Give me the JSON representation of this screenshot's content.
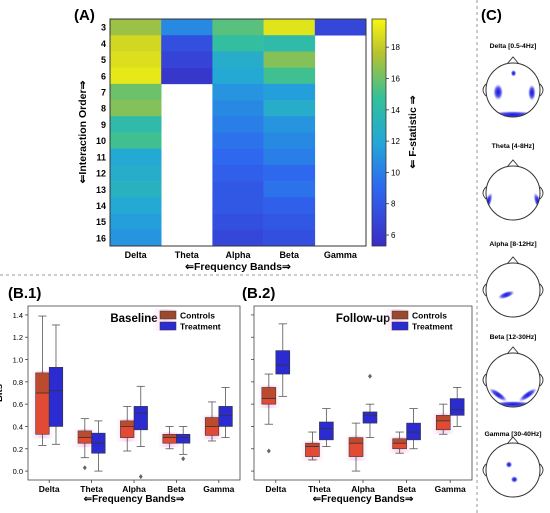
{
  "panel_labels": {
    "A": "(A)",
    "B1": "(B.1)",
    "B2": "(B.2)",
    "C": "(C)"
  },
  "heatmap": {
    "xlabel": "⇐Frequency Bands⇒",
    "ylabel": "⇐Interaction Order⇒",
    "colorbar_label": "⇐ F-statistic ⇒",
    "colorbar_ticks": [
      6,
      8,
      10,
      12,
      14,
      16,
      18
    ],
    "vmin": 5.3,
    "vmax": 19.8
  },
  "boxplots": {
    "xlabel": "⇐Frequency Bands⇒",
    "ylabel": "Bits",
    "y_ticks": [
      "0.0",
      "0.2",
      "0.4",
      "0.6",
      "0.8",
      "1.0",
      "1.2",
      "1.4"
    ],
    "legend": [
      "Controls",
      "Treatment"
    ],
    "colors": {
      "controls": "#9a4a2c",
      "controls_face": "#e34a33",
      "treatment": "#2b2bd1"
    }
  },
  "topomaps": [
    {
      "label": "Delta [0.5-4Hz]"
    },
    {
      "label": "Theta [4-8Hz]"
    },
    {
      "label": "Alpha [8-12Hz]"
    },
    {
      "label": "Beta [12-30Hz]"
    },
    {
      "label": "Gamma [30-40Hz]"
    }
  ],
  "chart_data": [
    {
      "type": "heatmap",
      "xlabel": "⇐Frequency Bands⇒",
      "ylabel": "⇐Interaction Order⇒",
      "x_categories": [
        "Delta",
        "Theta",
        "Alpha",
        "Beta",
        "Gamma"
      ],
      "y_categories": [
        "3",
        "4",
        "5",
        "6",
        "7",
        "8",
        "9",
        "10",
        "11",
        "12",
        "13",
        "14",
        "15",
        "16"
      ],
      "values": [
        [
          17.0,
          10.5,
          15.5,
          19.0,
          7.0
        ],
        [
          18.5,
          7.5,
          14.5,
          14.0,
          null
        ],
        [
          18.8,
          6.8,
          12.5,
          16.5,
          null
        ],
        [
          19.2,
          6.0,
          12.0,
          15.0,
          null
        ],
        [
          16.0,
          null,
          11.0,
          11.5,
          null
        ],
        [
          16.5,
          null,
          10.5,
          12.5,
          null
        ],
        [
          14.0,
          null,
          10.0,
          11.0,
          null
        ],
        [
          15.0,
          null,
          9.5,
          10.5,
          null
        ],
        [
          12.0,
          null,
          9.0,
          10.0,
          null
        ],
        [
          12.5,
          null,
          8.5,
          9.0,
          null
        ],
        [
          13.0,
          null,
          8.0,
          9.5,
          null
        ],
        [
          12.0,
          null,
          8.0,
          8.5,
          null
        ],
        [
          11.5,
          null,
          7.5,
          8.0,
          null
        ],
        [
          11.0,
          null,
          7.0,
          7.5,
          null
        ]
      ],
      "colorbar_label": "⇐ F-statistic ⇒",
      "vmin": 5.3,
      "vmax": 19.8
    },
    {
      "type": "box",
      "title": "Baseline",
      "xlabel": "⇐Frequency Bands⇒",
      "ylabel": "Bits",
      "categories": [
        "Delta",
        "Theta",
        "Alpha",
        "Beta",
        "Gamma"
      ],
      "ylim": [
        -0.08,
        1.48
      ],
      "legend_position": "top-right",
      "series": [
        {
          "name": "Controls",
          "boxes": [
            {
              "whislo": 0.23,
              "q1": 0.33,
              "med": 0.7,
              "q3": 0.88,
              "whishi": 1.39,
              "fliers": []
            },
            {
              "whislo": 0.12,
              "q1": 0.25,
              "med": 0.3,
              "q3": 0.36,
              "whishi": 0.47,
              "fliers": [
                0.03
              ]
            },
            {
              "whislo": 0.18,
              "q1": 0.3,
              "med": 0.4,
              "q3": 0.45,
              "whishi": 0.58,
              "fliers": []
            },
            {
              "whislo": 0.2,
              "q1": 0.25,
              "med": 0.3,
              "q3": 0.33,
              "whishi": 0.4,
              "fliers": []
            },
            {
              "whislo": 0.27,
              "q1": 0.32,
              "med": 0.4,
              "q3": 0.48,
              "whishi": 0.62,
              "fliers": []
            }
          ]
        },
        {
          "name": "Treatment",
          "boxes": [
            {
              "whislo": 0.24,
              "q1": 0.4,
              "med": 0.72,
              "q3": 0.93,
              "whishi": 1.31,
              "fliers": []
            },
            {
              "whislo": 0.0,
              "q1": 0.16,
              "med": 0.25,
              "q3": 0.34,
              "whishi": 0.45,
              "fliers": []
            },
            {
              "whislo": 0.22,
              "q1": 0.37,
              "med": 0.52,
              "q3": 0.58,
              "whishi": 0.76,
              "fliers": [
                -0.05
              ]
            },
            {
              "whislo": 0.15,
              "q1": 0.25,
              "med": 0.3,
              "q3": 0.33,
              "whishi": 0.4,
              "fliers": [
                0.11
              ]
            },
            {
              "whislo": 0.3,
              "q1": 0.4,
              "med": 0.5,
              "q3": 0.58,
              "whishi": 0.75,
              "fliers": []
            }
          ]
        }
      ]
    },
    {
      "type": "box",
      "title": "Follow-up",
      "xlabel": "⇐Frequency Bands⇒",
      "ylabel": "",
      "categories": [
        "Delta",
        "Theta",
        "Alpha",
        "Beta",
        "Gamma"
      ],
      "ylim": [
        -0.08,
        1.48
      ],
      "legend_position": "top-right",
      "series": [
        {
          "name": "Controls",
          "boxes": [
            {
              "whislo": 0.42,
              "q1": 0.6,
              "med": 0.65,
              "q3": 0.75,
              "whishi": 0.87,
              "fliers": [
                0.18
              ]
            },
            {
              "whislo": 0.1,
              "q1": 0.13,
              "med": 0.22,
              "q3": 0.25,
              "whishi": 0.35,
              "fliers": []
            },
            {
              "whislo": 0.0,
              "q1": 0.13,
              "med": 0.25,
              "q3": 0.3,
              "whishi": 0.43,
              "fliers": []
            },
            {
              "whislo": 0.16,
              "q1": 0.2,
              "med": 0.25,
              "q3": 0.29,
              "whishi": 0.35,
              "fliers": []
            },
            {
              "whislo": 0.33,
              "q1": 0.37,
              "med": 0.45,
              "q3": 0.5,
              "whishi": 0.6,
              "fliers": []
            }
          ]
        },
        {
          "name": "Treatment",
          "boxes": [
            {
              "whislo": 0.67,
              "q1": 0.87,
              "med": 0.95,
              "q3": 1.08,
              "whishi": 1.32,
              "fliers": []
            },
            {
              "whislo": 0.22,
              "q1": 0.28,
              "med": 0.38,
              "q3": 0.44,
              "whishi": 0.56,
              "fliers": []
            },
            {
              "whislo": 0.3,
              "q1": 0.43,
              "med": 0.5,
              "q3": 0.53,
              "whishi": 0.6,
              "fliers": [
                0.85
              ]
            },
            {
              "whislo": 0.2,
              "q1": 0.28,
              "med": 0.35,
              "q3": 0.43,
              "whishi": 0.56,
              "fliers": []
            },
            {
              "whislo": 0.4,
              "q1": 0.5,
              "med": 0.55,
              "q3": 0.65,
              "whishi": 0.75,
              "fliers": []
            }
          ]
        }
      ]
    }
  ]
}
